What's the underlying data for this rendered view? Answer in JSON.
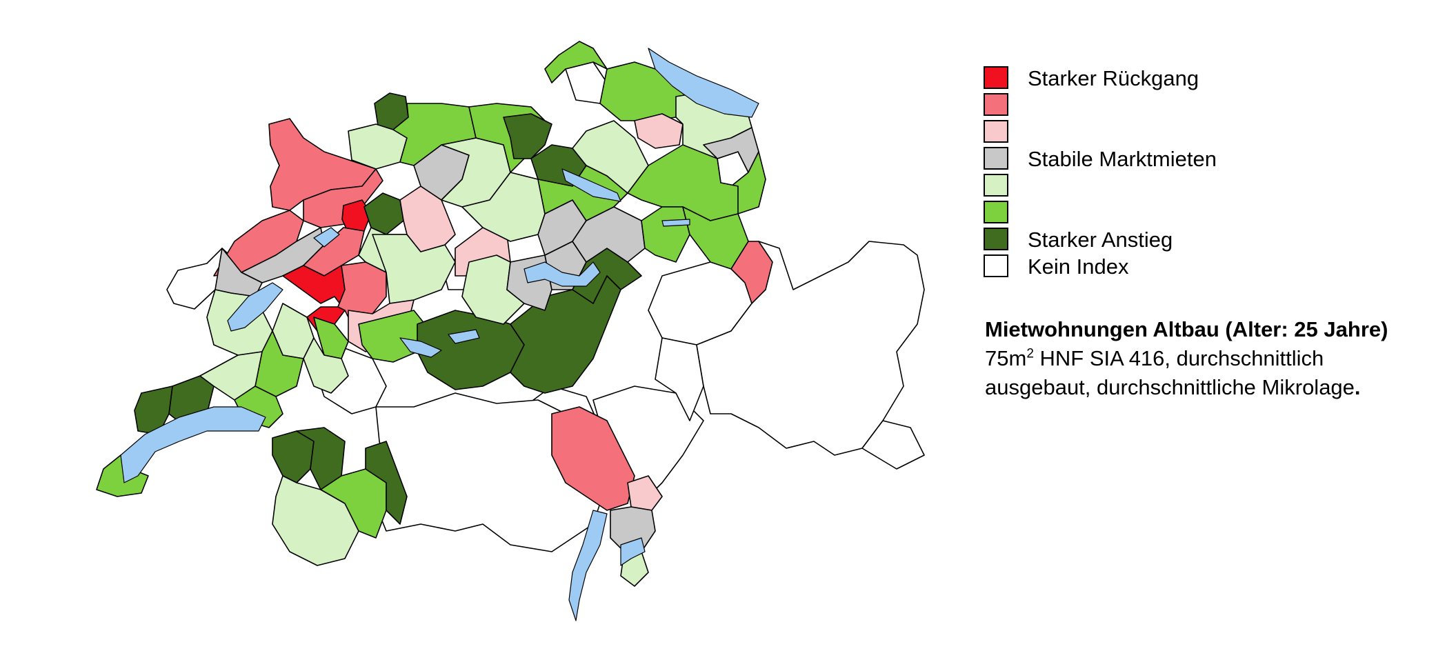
{
  "legend": {
    "items": [
      {
        "key": "starker_rueckgang",
        "label": "Starker Rückgang",
        "color": "#f01020"
      },
      {
        "key": "rueckgang",
        "label": "",
        "color": "#f4707a"
      },
      {
        "key": "leichter_rueckgang",
        "label": "",
        "color": "#f9cacc"
      },
      {
        "key": "stabil",
        "label": "Stabile Marktmieten",
        "color": "#c8c8c8"
      },
      {
        "key": "leichter_anstieg",
        "label": "",
        "color": "#d6f1c3"
      },
      {
        "key": "anstieg",
        "label": "",
        "color": "#7ed13e"
      },
      {
        "key": "starker_anstieg",
        "label": "Starker Anstieg",
        "color": "#3f6c1f"
      },
      {
        "key": "kein_index",
        "label": "Kein Index",
        "color": "#ffffff"
      }
    ]
  },
  "caption": {
    "title": "Mietwohnungen Altbau (Alter: 25 Jahre)",
    "line1_prefix": "75m",
    "line1_sup": "2",
    "line1_suffix": " HNF SIA 416, durchschnittlich",
    "line2": "ausgebaut, durchschnittliche Mikrolage",
    "line2_end": "."
  },
  "lake_color": "#9ecbf3",
  "map": {
    "regions": [
      {
        "id": "delemont",
        "category": "leichter_anstieg"
      },
      {
        "id": "porrentruy",
        "category": "starker_anstieg"
      },
      {
        "id": "franches-montagnes",
        "category": "rueckgang"
      },
      {
        "id": "jura-bernois",
        "category": "rueckgang"
      },
      {
        "id": "la-chaux-de-fonds",
        "category": "rueckgang"
      },
      {
        "id": "val-de-travers",
        "category": "stabil"
      },
      {
        "id": "neuchatel-littoral",
        "category": "stabil"
      },
      {
        "id": "vallee-de-joux",
        "category": "kein_index"
      },
      {
        "id": "biel",
        "category": "starker_rueckgang"
      },
      {
        "id": "seeland",
        "category": "rueckgang"
      },
      {
        "id": "solothurn",
        "category": "starker_anstieg"
      },
      {
        "id": "grenchen",
        "category": "leichter_anstieg"
      },
      {
        "id": "bern",
        "category": "starker_rueckgang"
      },
      {
        "id": "bern-mittelland",
        "category": "rueckgang"
      },
      {
        "id": "emmental",
        "category": "leichter_anstieg"
      },
      {
        "id": "oberaargau",
        "category": "leichter_rueckgang"
      },
      {
        "id": "olten",
        "category": "stabil"
      },
      {
        "id": "thal",
        "category": "leichter_rueckgang"
      },
      {
        "id": "fribourg-sense",
        "category": "leichter_rueckgang"
      },
      {
        "id": "broye",
        "category": "leichter_anstieg"
      },
      {
        "id": "nord-vaudois",
        "category": "leichter_anstieg"
      },
      {
        "id": "gros-de-vaud",
        "category": "anstieg"
      },
      {
        "id": "gruyere",
        "category": "leichter_anstieg"
      },
      {
        "id": "morges",
        "category": "starker_anstieg"
      },
      {
        "id": "nyon",
        "category": "starker_anstieg"
      },
      {
        "id": "lausanne",
        "category": "leichter_anstieg"
      },
      {
        "id": "lavaux",
        "category": "anstieg"
      },
      {
        "id": "glane",
        "category": "anstieg"
      },
      {
        "id": "geneve",
        "category": "anstieg"
      },
      {
        "id": "thun",
        "category": "anstieg"
      },
      {
        "id": "oberland",
        "category": "starker_anstieg"
      },
      {
        "id": "entlebuch",
        "category": "starker_anstieg"
      },
      {
        "id": "luzern",
        "category": "leichter_anstieg"
      },
      {
        "id": "sursee",
        "category": "stabil"
      },
      {
        "id": "aarau",
        "category": "leichter_anstieg"
      },
      {
        "id": "fricktal",
        "category": "anstieg"
      },
      {
        "id": "baden",
        "category": "starker_anstieg"
      },
      {
        "id": "freiamt",
        "category": "leichter_anstieg"
      },
      {
        "id": "basel",
        "category": "anstieg"
      },
      {
        "id": "zug",
        "category": "stabil"
      },
      {
        "id": "schwyz",
        "category": "stabil"
      },
      {
        "id": "uri",
        "category": "starker_anstieg"
      },
      {
        "id": "nidwalden",
        "category": "stabil"
      },
      {
        "id": "zuerich-stadt",
        "category": "starker_anstieg"
      },
      {
        "id": "zuerich-oberland",
        "category": "anstieg"
      },
      {
        "id": "winterthur",
        "category": "leichter_anstieg"
      },
      {
        "id": "schaffhausen",
        "category": "anstieg"
      },
      {
        "id": "weinland",
        "category": "kein_index"
      },
      {
        "id": "thurgau",
        "category": "anstieg"
      },
      {
        "id": "frauenfeld",
        "category": "leichter_rueckgang"
      },
      {
        "id": "st-gallen",
        "category": "leichter_anstieg"
      },
      {
        "id": "appenzell",
        "category": "stabil"
      },
      {
        "id": "rheintal",
        "category": "anstieg"
      },
      {
        "id": "toggenburg",
        "category": "anstieg"
      },
      {
        "id": "glarus",
        "category": "anstieg"
      },
      {
        "id": "sarganserland",
        "category": "anstieg"
      },
      {
        "id": "chur",
        "category": "rueckgang"
      },
      {
        "id": "monthey",
        "category": "starker_anstieg"
      },
      {
        "id": "martigny",
        "category": "starker_anstieg"
      },
      {
        "id": "entremont",
        "category": "leichter_anstieg"
      },
      {
        "id": "sion",
        "category": "anstieg"
      },
      {
        "id": "sierre",
        "category": "starker_anstieg"
      },
      {
        "id": "locarno",
        "category": "rueckgang"
      },
      {
        "id": "bellinzona",
        "category": "leichter_rueckgang"
      },
      {
        "id": "lugano",
        "category": "stabil"
      },
      {
        "id": "mendrisio",
        "category": "leichter_anstieg"
      },
      {
        "id": "oberwallis",
        "category": "kein_index"
      },
      {
        "id": "graubuenden",
        "category": "kein_index"
      },
      {
        "id": "misox",
        "category": "kein_index"
      },
      {
        "id": "engadin",
        "category": "kein_index"
      },
      {
        "id": "saanen",
        "category": "kein_index"
      },
      {
        "id": "interlaken",
        "category": "kein_index"
      },
      {
        "id": "obwalden",
        "category": "kein_index"
      },
      {
        "id": "leventina",
        "category": "kein_index"
      },
      {
        "id": "surselva",
        "category": "kein_index"
      },
      {
        "id": "appenzell-inner",
        "category": "kein_index"
      }
    ]
  }
}
